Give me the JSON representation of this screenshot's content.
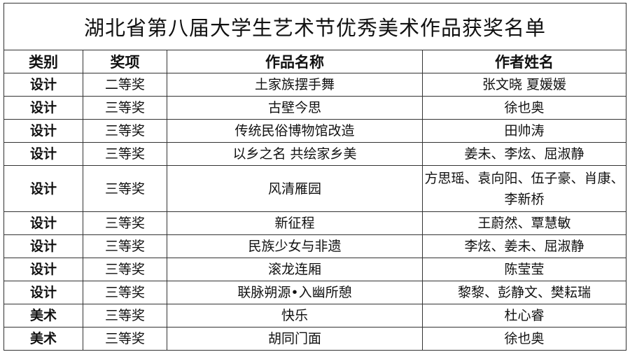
{
  "title": "湖北省第八届大学生艺术节优秀美术作品获奖名单",
  "headers": {
    "category": "类别",
    "award": "奖项",
    "work": "作品名称",
    "authors": "作者姓名"
  },
  "rows": [
    {
      "category": "设计",
      "award": "二等奖",
      "work": "土家族摆手舞",
      "authors": "张文晓 夏媛媛"
    },
    {
      "category": "设计",
      "award": "三等奖",
      "work": "古壁今思",
      "authors": "徐也奥"
    },
    {
      "category": "设计",
      "award": "三等奖",
      "work": "传统民俗博物馆改造",
      "authors": "田帅涛"
    },
    {
      "category": "设计",
      "award": "三等奖",
      "work": "以乡之名 共绘家乡美",
      "authors": "姜未、李炫、屈淑静"
    },
    {
      "category": "设计",
      "award": "三等奖",
      "work": "风清雁园",
      "authors": "方思瑶、袁向阳、伍子豪、肖康、李新桥"
    },
    {
      "category": "设计",
      "award": "三等奖",
      "work": "新征程",
      "authors": "王蔚然、覃慧敏"
    },
    {
      "category": "设计",
      "award": "三等奖",
      "work": "民族少女与非遗",
      "authors": "李炫、姜未、屈淑静"
    },
    {
      "category": "设计",
      "award": "三等奖",
      "work": "滚龙连厢",
      "authors": "陈莹莹"
    },
    {
      "category": "设计",
      "award": "三等奖",
      "work": "联脉朔源•入幽所憩",
      "authors": "黎黎、彭静文、樊耘瑞"
    },
    {
      "category": "美术",
      "award": "三等奖",
      "work": "快乐",
      "authors": "杜心睿"
    },
    {
      "category": "美术",
      "award": "三等奖",
      "work": "胡同门面",
      "authors": "徐也奥"
    }
  ]
}
